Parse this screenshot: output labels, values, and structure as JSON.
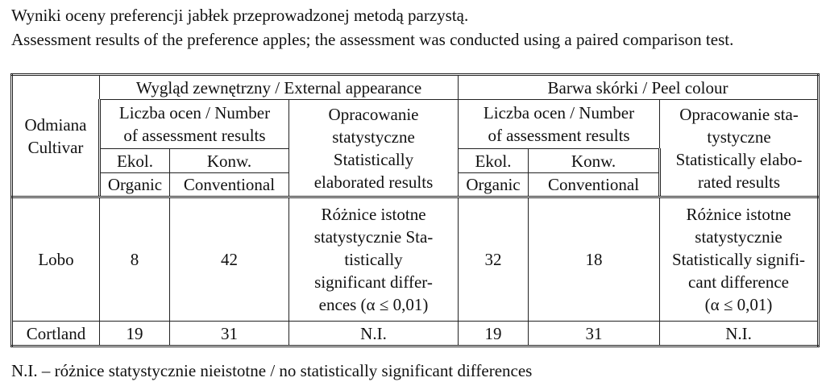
{
  "caption": {
    "line_pl": "Wyniki oceny preferencji jabłek przeprowadzonej metodą parzystą.",
    "line_en": "Assessment results of the preference apples; the assessment was conducted using a paired comparison test."
  },
  "table": {
    "cultivar_header": [
      "Odmiana",
      "Cultivar"
    ],
    "groups": [
      {
        "title": "Wygląd zewnętrzny / External appearance",
        "count_header": [
          "Liczba ocen / Number",
          "of assessment results"
        ],
        "organic": [
          "Ekol.",
          "Organic"
        ],
        "conventional": [
          "Konw.",
          "Conventional"
        ],
        "stat_header": [
          "Opracowanie",
          "statystyczne",
          "Statistically",
          "elaborated results"
        ]
      },
      {
        "title": "Barwa skórki / Peel colour",
        "count_header": [
          "Liczba ocen / Number",
          "of assessment results"
        ],
        "organic": [
          "Ekol.",
          "Organic"
        ],
        "conventional": [
          "Konw.",
          "Conventional"
        ],
        "stat_header": [
          "Opracowanie sta-",
          "tystyczne",
          "Statistically elabo-",
          "rated results"
        ]
      }
    ],
    "rows": [
      {
        "cultivar": "Lobo",
        "appearance_organic": "8",
        "appearance_conventional": "42",
        "appearance_stat": [
          "Różnice istotne",
          "statystycznie Sta-",
          "tistically",
          "significant differ-",
          "ences (α ≤ 0,01)"
        ],
        "peel_organic": "32",
        "peel_conventional": "18",
        "peel_stat": [
          "Różnice istotne",
          "statystycznie",
          "Statistically signifi-",
          "cant difference",
          "(α ≤ 0,01)"
        ]
      },
      {
        "cultivar": "Cortland",
        "appearance_organic": "19",
        "appearance_conventional": "31",
        "appearance_stat": [
          "N.I."
        ],
        "peel_organic": "19",
        "peel_conventional": "31",
        "peel_stat": [
          "N.I."
        ]
      }
    ]
  },
  "footnote": "N.I. – różnice statystycznie nieistotne / no statistically significant differences"
}
